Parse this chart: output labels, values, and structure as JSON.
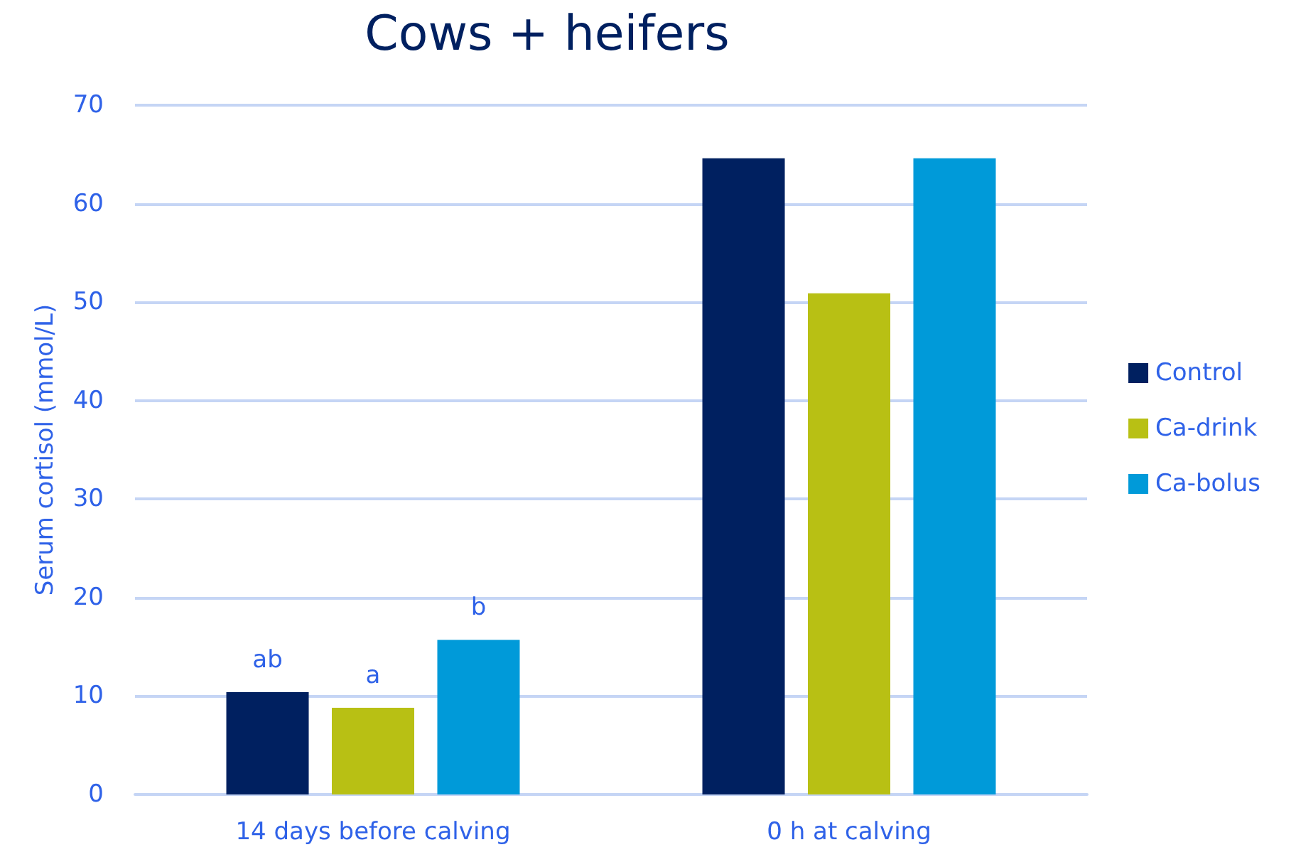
{
  "chart_data": {
    "type": "bar",
    "title": "Cows + heifers",
    "ylabel": "Serum cortisol (mmol/L)",
    "categories": [
      "14 days before calving",
      "0 h at calving"
    ],
    "series": [
      {
        "name": "Control",
        "color": "#002060",
        "values": [
          10.4,
          64.6
        ],
        "value_labels": [
          "ab",
          null
        ]
      },
      {
        "name": "Ca-drink",
        "color": "#b8c014",
        "values": [
          8.8,
          50.9
        ],
        "value_labels": [
          "a",
          null
        ]
      },
      {
        "name": "Ca-bolus",
        "color": "#009ad9",
        "values": [
          15.7,
          64.6
        ],
        "value_labels": [
          "b",
          null
        ]
      }
    ],
    "ylim": [
      0,
      70
    ],
    "yticks": [
      0,
      10,
      20,
      30,
      40,
      50,
      60,
      70
    ],
    "grid": "y",
    "legend": "right"
  }
}
